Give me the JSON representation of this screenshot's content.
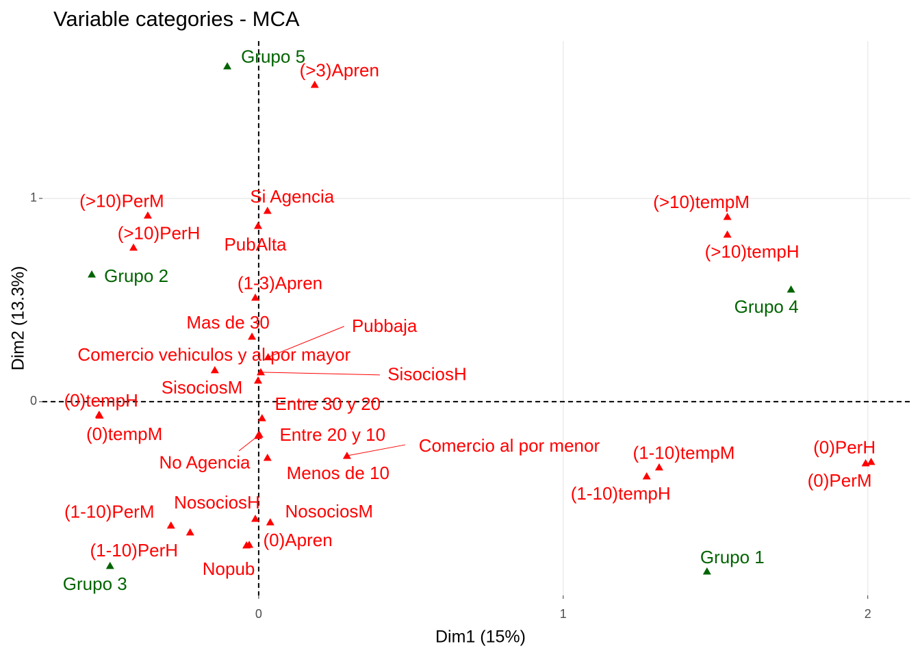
{
  "chart_data": {
    "type": "scatter",
    "title": "Variable categories - MCA",
    "xlabel": "Dim1 (15%)",
    "ylabel": "Dim2 (13.3%)",
    "xlim": [
      -0.71,
      2.14
    ],
    "ylim": [
      -0.953,
      1.774
    ],
    "xticks": [
      0,
      1,
      2
    ],
    "yticks": [
      0,
      1
    ],
    "grid": true,
    "reference_lines": {
      "x": 0,
      "y": 0
    },
    "series": [
      {
        "color": "#ff0000",
        "marker": "triangle",
        "labels": [
          "(>3)Apren",
          "(>10)PerM",
          "(>10)PerH",
          "Si Agencia",
          "PubAlta",
          "(1-3)Apren",
          "Mas de 30",
          "Pubbaja",
          "Comercio vehiculos y al por mayor",
          "SisociosH",
          "SisociosM",
          "(0)tempH",
          "(0)tempM",
          "Entre 30 y 20",
          "Entre 20 y 10",
          "No Agencia",
          "Menos de 10",
          "Comercio al por menor",
          "(1-10)tempM",
          "(1-10)tempH",
          "(0)PerH",
          "(0)PerM",
          "(>10)tempM",
          "(>10)tempH",
          "(1-10)PerM",
          "(1-10)PerH",
          "NosociosH",
          "NosociosM",
          "(0)Apren",
          "Nopub"
        ],
        "x": [
          0.184,
          -0.364,
          -0.411,
          0.029,
          -0.002,
          -0.011,
          -0.022,
          0.031,
          -0.144,
          0.007,
          -0.002,
          -0.524,
          -0.522,
          0.011,
          0.002,
          -0.002,
          0.029,
          0.29,
          1.315,
          1.274,
          2.011,
          1.993,
          1.539,
          1.539,
          -0.288,
          -0.225,
          -0.011,
          0.038,
          -0.031,
          -0.04
        ],
        "y": [
          1.559,
          0.916,
          0.758,
          0.939,
          0.865,
          0.512,
          0.32,
          0.219,
          0.155,
          0.145,
          0.104,
          -0.064,
          -0.068,
          -0.081,
          -0.162,
          -0.168,
          -0.276,
          -0.266,
          -0.323,
          -0.367,
          -0.296,
          -0.303,
          0.909,
          0.822,
          -0.609,
          -0.643,
          -0.576,
          -0.593,
          -0.704,
          -0.707
        ]
      },
      {
        "color": "#006400",
        "marker": "triangle",
        "labels": [
          "Grupo 5",
          "Grupo 2",
          "Grupo 3",
          "Grupo 4",
          "Grupo 1"
        ],
        "x": [
          -0.103,
          -0.548,
          -0.488,
          1.748,
          1.472
        ],
        "y": [
          1.65,
          0.626,
          -0.808,
          0.552,
          -0.835
        ]
      }
    ]
  }
}
